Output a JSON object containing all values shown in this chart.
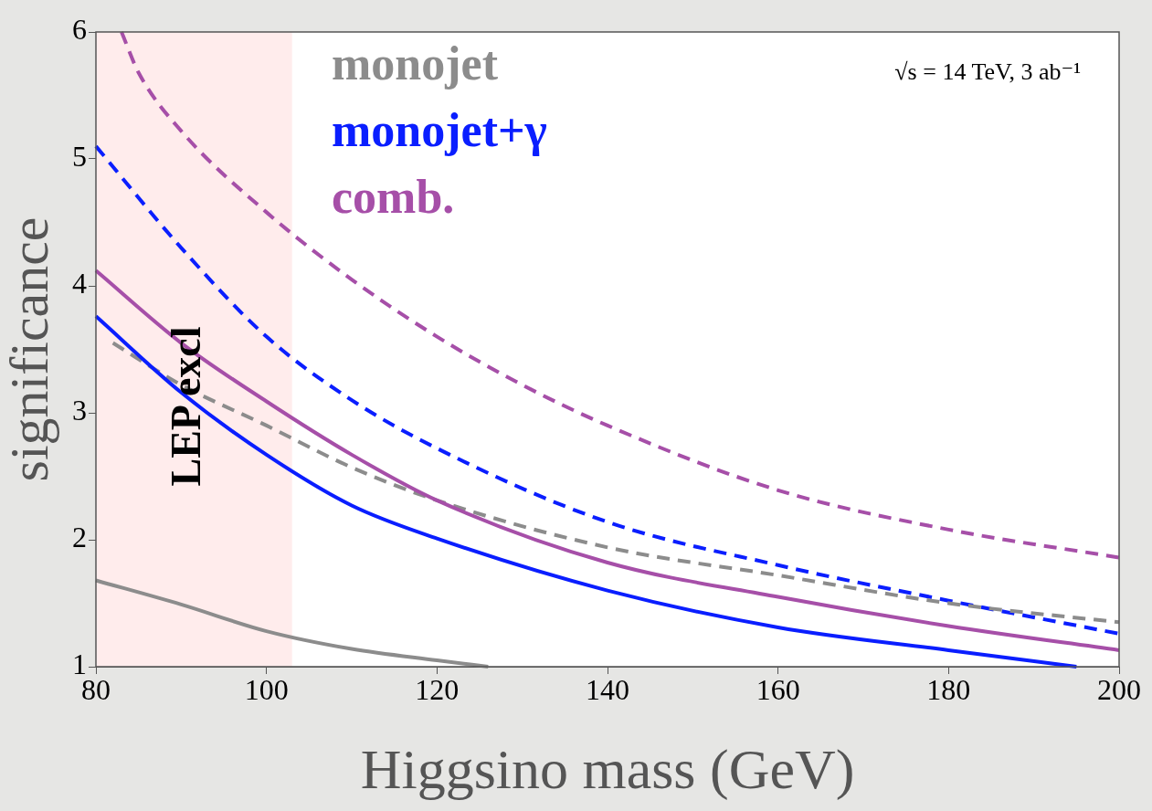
{
  "chart_data": {
    "type": "line",
    "xlabel": "Higgsino mass (GeV)",
    "ylabel": "significance",
    "xlim": [
      80,
      200
    ],
    "ylim": [
      1,
      6
    ],
    "xticks": [
      80,
      100,
      120,
      140,
      160,
      180,
      200
    ],
    "yticks": [
      1,
      2,
      3,
      4,
      5,
      6
    ],
    "grid": false,
    "legend": "top left",
    "marker": "none",
    "annotations": [
      "√s = 14 TeV, 3 ab⁻¹"
    ],
    "bands": [
      {
        "axis": "x",
        "from": 80,
        "to": 103,
        "label": "LEP excl",
        "color": "#ffecec"
      }
    ],
    "series": [
      {
        "name": "monojet",
        "color": "#8c8c8c",
        "line_style": "solid",
        "x": [
          80,
          90,
          100,
          110,
          120,
          126
        ],
        "values": [
          1.68,
          1.49,
          1.28,
          1.14,
          1.05,
          1.0
        ]
      },
      {
        "name": "monojet+γ",
        "color": "#0a1eff",
        "line_style": "solid",
        "x": [
          80,
          90,
          100,
          110,
          120,
          140,
          160,
          180,
          195
        ],
        "values": [
          3.76,
          3.16,
          2.67,
          2.27,
          2.01,
          1.6,
          1.31,
          1.13,
          1.0
        ]
      },
      {
        "name": "comb.",
        "color": "#a64fa8",
        "line_style": "solid",
        "x": [
          80,
          90,
          100,
          110,
          120,
          140,
          160,
          180,
          200
        ],
        "values": [
          4.12,
          3.55,
          3.09,
          2.67,
          2.31,
          1.82,
          1.55,
          1.32,
          1.13
        ]
      },
      {
        "color": "#8c8c8c",
        "line_style": "dashed",
        "x": [
          82,
          90,
          100,
          110,
          120,
          140,
          160,
          180,
          200
        ],
        "values": [
          3.55,
          3.22,
          2.9,
          2.57,
          2.31,
          1.94,
          1.72,
          1.5,
          1.35
        ]
      },
      {
        "color": "#0a1eff",
        "line_style": "dashed",
        "x": [
          80,
          90,
          100,
          110,
          120,
          140,
          160,
          180,
          200
        ],
        "values": [
          5.1,
          4.3,
          3.6,
          3.1,
          2.72,
          2.14,
          1.8,
          1.52,
          1.26
        ]
      },
      {
        "color": "#a64fa8",
        "line_style": "dashed",
        "x": [
          83,
          85,
          90,
          100,
          110,
          120,
          130,
          140,
          160,
          180,
          200
        ],
        "values": [
          6.0,
          5.68,
          5.22,
          4.58,
          4.05,
          3.6,
          3.22,
          2.9,
          2.39,
          2.08,
          1.86
        ]
      }
    ]
  }
}
